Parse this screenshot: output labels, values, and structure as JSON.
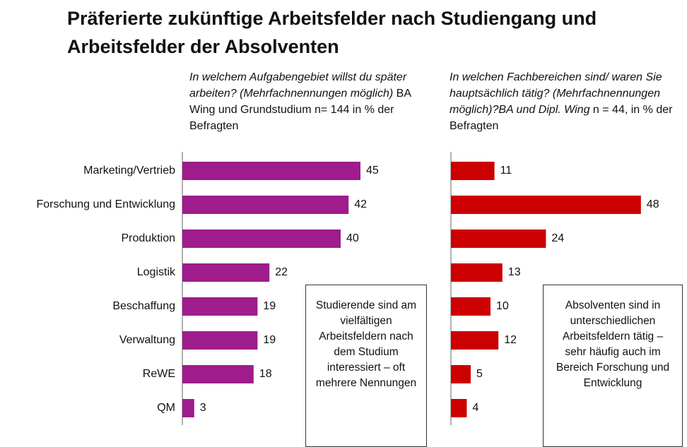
{
  "title": "Präferierte zukünftige Arbeitsfelder nach Studiengang und Arbeitsfelder der Absolventen",
  "chart_data": [
    {
      "type": "bar",
      "orientation": "horizontal",
      "subtitle": [
        "In welchem Aufgabengebiet willst du später arbeiten? (Mehrfachnennungen möglich)",
        "BA Wing und Grundstudium n= 144 in % der Befragten"
      ],
      "categories": [
        "Marketing/Vertrieb",
        "Forschung und Entwicklung",
        "Produktion",
        "Logistik",
        "Beschaffung",
        "Verwaltung",
        "ReWE",
        "QM"
      ],
      "values": [
        45,
        42,
        40,
        22,
        19,
        19,
        18,
        3
      ],
      "color": "#9e1c8c",
      "xlim": [
        0,
        50
      ],
      "annotation": "Studierende sind am vielfältigen Arbeitsfeldern nach dem Studium interessiert – oft mehrere Nennungen"
    },
    {
      "type": "bar",
      "orientation": "horizontal",
      "subtitle": [
        "In welchen Fachbereichen sind/ waren Sie hauptsächlich tätig? (Mehrfachnennungen möglich)?BA und Dipl. Wing",
        "n = 44, in % der Befragten"
      ],
      "categories": [
        null,
        null,
        null,
        null,
        null,
        null,
        null,
        null
      ],
      "values": [
        11,
        48,
        24,
        13,
        10,
        12,
        5,
        4
      ],
      "color": "#cc0000",
      "xlim": [
        0,
        50
      ],
      "annotation": "Absolventen sind in unterschiedlichen Arbeitsfeldern tätig – sehr häufig auch im Bereich Forschung und Entwicklung"
    }
  ]
}
